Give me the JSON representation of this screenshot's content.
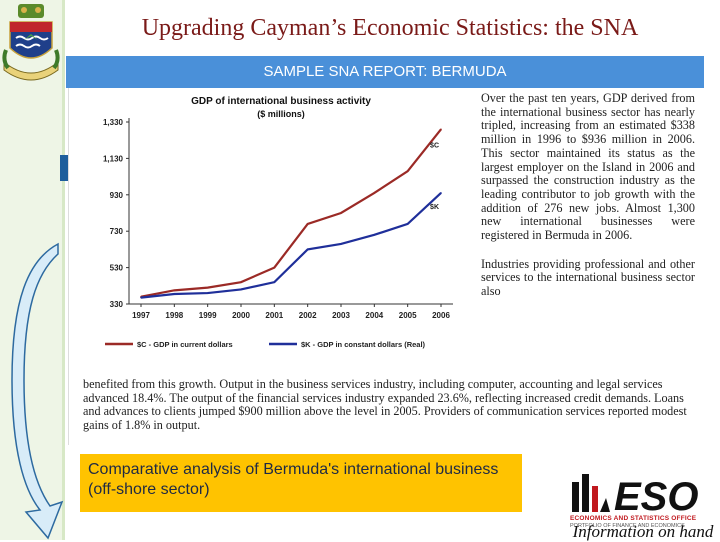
{
  "title": "Upgrading Cayman’s Economic Statistics: the SNA",
  "banner": "SAMPLE SNA REPORT: BERMUDA",
  "side_paragraph_1": "Over the past ten years, GDP derived from the international business sector has nearly tripled, increasing from an estimated $338 million in 1996 to $936 million in 2006. This sector maintained its status as the largest employer on the Island in 2006 and surpassed the construction industry as the leading contributor to job growth with the addition of 276 new jobs. Almost 1,300 new international businesses were registered in Bermuda in 2006.",
  "side_paragraph_2": "Industries providing professional and other services to the international business sector also",
  "bottom_paragraph": "benefited from this growth. Output in the business services industry, including computer, accounting and legal services advanced 18.4%. The output of the financial services industry expanded 23.6%, reflecting increased credit demands. Loans and advances to clients jumped $900 million above the level in 2005. Providers of communication services reported modest gains of 1.8% in output.",
  "caption": "Comparative analysis of Bermuda's international business (off-shore sector)",
  "logo": {
    "name": "ESO",
    "subtitle": "ECONOMICS AND STATISTICS OFFICE",
    "subtitle2": "PORTFOLIO OF FINANCE AND ECONOMICS",
    "tagline": "Information on hand"
  },
  "colors": {
    "title": "#7a1a18",
    "banner": "#4a90d9",
    "caption_bg": "#ffc300",
    "series_current": "#9b2a26",
    "series_constant": "#1f2f9a"
  },
  "chart_data": {
    "type": "line",
    "title": "GDP of international business activity",
    "subtitle": "($ millions)",
    "x": [
      "1997",
      "1998",
      "1999",
      "2000",
      "2001",
      "2002",
      "2003",
      "2004",
      "2005",
      "2006"
    ],
    "yticks": [
      "1,330",
      "1,130",
      "930",
      "730",
      "530",
      "330"
    ],
    "ylim": [
      330,
      1330
    ],
    "series": [
      {
        "name": "$C - GDP in current dollars",
        "label": "$C",
        "values": [
          370,
          405,
          420,
          450,
          530,
          770,
          830,
          940,
          1060,
          1290
        ]
      },
      {
        "name": "$K - GDP in constant dollars (Real)",
        "label": "$K",
        "values": [
          365,
          385,
          390,
          410,
          450,
          630,
          660,
          710,
          770,
          940
        ]
      }
    ],
    "legend": "bottom",
    "grid": false
  }
}
